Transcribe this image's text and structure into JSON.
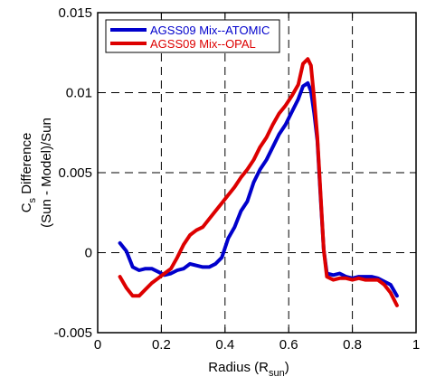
{
  "chart_data": {
    "type": "line",
    "title": "",
    "xlabel": {
      "main": "Radius (R",
      "sub": "sun",
      "close": ")"
    },
    "ylabel": {
      "line1_main": "C",
      "line1_sub": "s",
      "line1_rest": " Difference",
      "line2": "(Sun - Model)/Sun"
    },
    "xlim": [
      0,
      1
    ],
    "ylim": [
      -0.005,
      0.015
    ],
    "x_ticks": [
      0,
      0.2,
      0.4,
      0.6,
      0.8,
      1
    ],
    "x_tick_labels": [
      "0",
      "0.2",
      "0.4",
      "0.6",
      "0.8",
      "1"
    ],
    "y_ticks": [
      -0.005,
      0,
      0.005,
      0.01,
      0.015
    ],
    "y_tick_labels": [
      "-0.005",
      "0",
      "0.005",
      "0.01",
      "0.015"
    ],
    "grid": true,
    "legend_position": "top-left",
    "series": [
      {
        "name": "AGSS09 Mix--ATOMIC",
        "color": "#0000cc",
        "points": [
          [
            0.07,
            0.0006
          ],
          [
            0.09,
            0.0001
          ],
          [
            0.11,
            -0.0009
          ],
          [
            0.13,
            -0.0011
          ],
          [
            0.15,
            -0.001
          ],
          [
            0.17,
            -0.001
          ],
          [
            0.19,
            -0.0012
          ],
          [
            0.21,
            -0.0014
          ],
          [
            0.23,
            -0.0013
          ],
          [
            0.25,
            -0.0011
          ],
          [
            0.27,
            -0.001
          ],
          [
            0.29,
            -0.0007
          ],
          [
            0.31,
            -0.0008
          ],
          [
            0.33,
            -0.0009
          ],
          [
            0.35,
            -0.0009
          ],
          [
            0.37,
            -0.0007
          ],
          [
            0.39,
            -0.0003
          ],
          [
            0.41,
            0.0009
          ],
          [
            0.43,
            0.0016
          ],
          [
            0.45,
            0.0026
          ],
          [
            0.47,
            0.0032
          ],
          [
            0.49,
            0.0044
          ],
          [
            0.51,
            0.0052
          ],
          [
            0.53,
            0.0058
          ],
          [
            0.55,
            0.0066
          ],
          [
            0.57,
            0.0074
          ],
          [
            0.59,
            0.008
          ],
          [
            0.61,
            0.0088
          ],
          [
            0.63,
            0.0096
          ],
          [
            0.645,
            0.0104
          ],
          [
            0.66,
            0.0106
          ],
          [
            0.67,
            0.0101
          ],
          [
            0.68,
            0.0087
          ],
          [
            0.69,
            0.007
          ],
          [
            0.7,
            0.0035
          ],
          [
            0.71,
            0.0002
          ],
          [
            0.72,
            -0.0013
          ],
          [
            0.74,
            -0.0014
          ],
          [
            0.76,
            -0.0013
          ],
          [
            0.78,
            -0.0015
          ],
          [
            0.8,
            -0.0016
          ],
          [
            0.82,
            -0.0015
          ],
          [
            0.84,
            -0.0015
          ],
          [
            0.86,
            -0.0015
          ],
          [
            0.88,
            -0.0016
          ],
          [
            0.9,
            -0.0018
          ],
          [
            0.92,
            -0.002
          ],
          [
            0.94,
            -0.0027
          ]
        ]
      },
      {
        "name": "AGSS09 Mix--OPAL",
        "color": "#dd0000",
        "points": [
          [
            0.07,
            -0.0015
          ],
          [
            0.09,
            -0.0022
          ],
          [
            0.11,
            -0.0027
          ],
          [
            0.13,
            -0.0027
          ],
          [
            0.15,
            -0.0023
          ],
          [
            0.17,
            -0.0019
          ],
          [
            0.19,
            -0.0016
          ],
          [
            0.21,
            -0.0013
          ],
          [
            0.23,
            -0.001
          ],
          [
            0.25,
            -0.0003
          ],
          [
            0.27,
            0.0005
          ],
          [
            0.29,
            0.0011
          ],
          [
            0.31,
            0.0014
          ],
          [
            0.33,
            0.0016
          ],
          [
            0.35,
            0.0021
          ],
          [
            0.37,
            0.0026
          ],
          [
            0.39,
            0.0031
          ],
          [
            0.41,
            0.0036
          ],
          [
            0.43,
            0.0041
          ],
          [
            0.45,
            0.0047
          ],
          [
            0.47,
            0.0052
          ],
          [
            0.49,
            0.0058
          ],
          [
            0.51,
            0.0066
          ],
          [
            0.53,
            0.0072
          ],
          [
            0.55,
            0.008
          ],
          [
            0.57,
            0.0087
          ],
          [
            0.59,
            0.0092
          ],
          [
            0.61,
            0.0098
          ],
          [
            0.63,
            0.0105
          ],
          [
            0.645,
            0.0118
          ],
          [
            0.66,
            0.0121
          ],
          [
            0.67,
            0.0117
          ],
          [
            0.68,
            0.0096
          ],
          [
            0.69,
            0.0072
          ],
          [
            0.7,
            0.0037
          ],
          [
            0.71,
            0.0002
          ],
          [
            0.72,
            -0.0015
          ],
          [
            0.74,
            -0.0017
          ],
          [
            0.76,
            -0.0016
          ],
          [
            0.78,
            -0.0016
          ],
          [
            0.8,
            -0.0017
          ],
          [
            0.82,
            -0.0016
          ],
          [
            0.84,
            -0.0017
          ],
          [
            0.86,
            -0.0017
          ],
          [
            0.88,
            -0.0017
          ],
          [
            0.9,
            -0.002
          ],
          [
            0.92,
            -0.0025
          ],
          [
            0.94,
            -0.0033
          ]
        ]
      }
    ]
  }
}
